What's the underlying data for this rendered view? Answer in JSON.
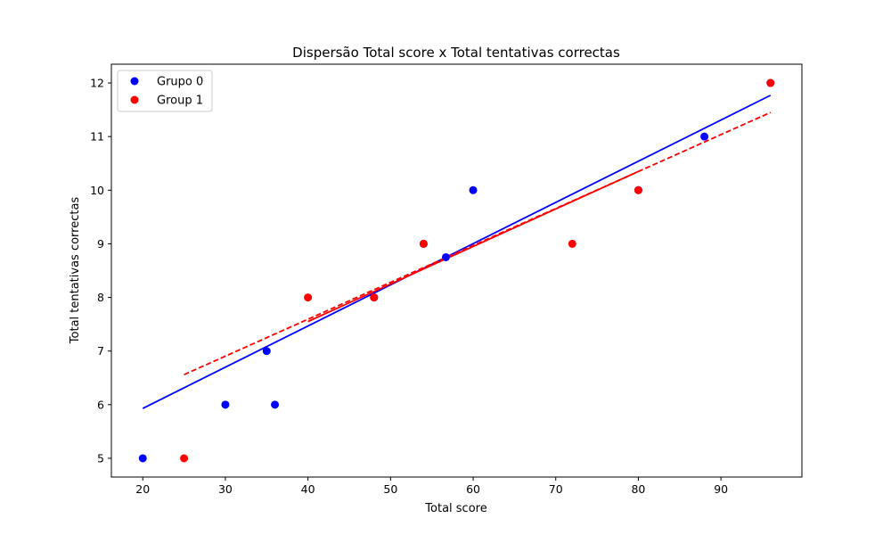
{
  "chart_data": {
    "type": "scatter",
    "title": "Dispersão Total score x Total tentativas correctas",
    "xlabel": "Total score",
    "ylabel": "Total tentativas correctas",
    "xlim": [
      16.2,
      99.8
    ],
    "ylim": [
      4.65,
      12.35
    ],
    "xticks": [
      20,
      30,
      40,
      50,
      60,
      70,
      80,
      90
    ],
    "yticks": [
      5,
      6,
      7,
      8,
      9,
      10,
      11,
      12
    ],
    "grid": false,
    "legend_position": "upper-left",
    "series": [
      {
        "name": "Grupo 0",
        "color": "#0000ff",
        "points": [
          {
            "x": 20,
            "y": 5
          },
          {
            "x": 30,
            "y": 6
          },
          {
            "x": 35,
            "y": 7
          },
          {
            "x": 36,
            "y": 6
          },
          {
            "x": 48,
            "y": 8
          },
          {
            "x": 54,
            "y": 9
          },
          {
            "x": 56.7,
            "y": 8.75
          },
          {
            "x": 60,
            "y": 10
          },
          {
            "x": 80,
            "y": 10
          },
          {
            "x": 88,
            "y": 11
          },
          {
            "x": 96,
            "y": 12
          }
        ],
        "fit": {
          "x": [
            20,
            96
          ],
          "y": [
            5.93,
            11.77
          ],
          "style": "solid"
        }
      },
      {
        "name": "Group 1",
        "color": "#ff0000",
        "points": [
          {
            "x": 25,
            "y": 5
          },
          {
            "x": 40,
            "y": 8
          },
          {
            "x": 48,
            "y": 8
          },
          {
            "x": 54,
            "y": 9
          },
          {
            "x": 72,
            "y": 9
          },
          {
            "x": 80,
            "y": 10
          },
          {
            "x": 96,
            "y": 12
          }
        ],
        "fit": {
          "x": [
            25,
            96
          ],
          "y": [
            6.56,
            11.45
          ],
          "style": "dashed"
        },
        "fit_segment": {
          "x": [
            40,
            80
          ],
          "y": [
            7.55,
            10.35
          ],
          "style": "solid"
        }
      }
    ]
  }
}
